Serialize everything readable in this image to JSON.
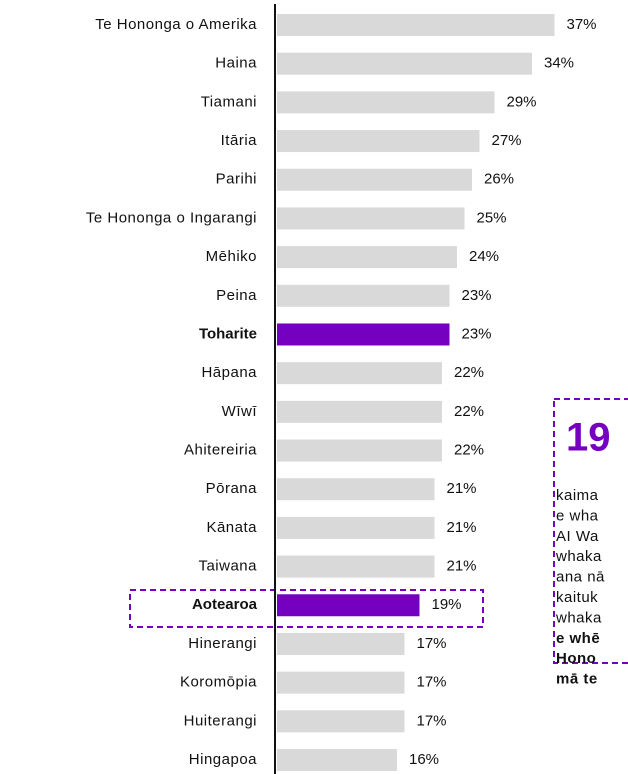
{
  "chart_data": {
    "type": "barh",
    "categories": [
      "Te Hononga o Amerika",
      "Haina",
      "Tiamani",
      "Itāria",
      "Parihi",
      "Te Hononga o Ingarangi",
      "Mēhiko",
      "Peina",
      "Toharite",
      "Hāpana",
      "Wīwī",
      "Ahitereiria",
      "Pōrana",
      "Kānata",
      "Taiwana",
      "Aotearoa",
      "Hinerangi",
      "Koromōpia",
      "Huiterangi",
      "Hingapoa"
    ],
    "values": [
      37,
      34,
      29,
      27,
      26,
      25,
      24,
      23,
      23,
      22,
      22,
      22,
      21,
      21,
      21,
      19,
      17,
      17,
      17,
      16
    ],
    "value_labels": [
      "37%",
      "34%",
      "29%",
      "27%",
      "26%",
      "25%",
      "24%",
      "23%",
      "23%",
      "22%",
      "22%",
      "22%",
      "21%",
      "21%",
      "21%",
      "19%",
      "17%",
      "17%",
      "17%",
      "16%"
    ],
    "colors": [
      "#d9d9d9",
      "#d9d9d9",
      "#d9d9d9",
      "#d9d9d9",
      "#d9d9d9",
      "#d9d9d9",
      "#d9d9d9",
      "#d9d9d9",
      "#7500c0",
      "#d9d9d9",
      "#d9d9d9",
      "#d9d9d9",
      "#d9d9d9",
      "#d9d9d9",
      "#d9d9d9",
      "#7500c0",
      "#d9d9d9",
      "#d9d9d9",
      "#d9d9d9",
      "#d9d9d9"
    ],
    "xlim": [
      0,
      40
    ],
    "annotation": {
      "headline": "19",
      "lines": [
        "kaima",
        "e wha",
        "AI Wa",
        "whaka",
        "ana nā",
        "kaituk",
        "whaka",
        "e whē",
        "Hono",
        "mā te"
      ],
      "bold_from": 7
    }
  }
}
